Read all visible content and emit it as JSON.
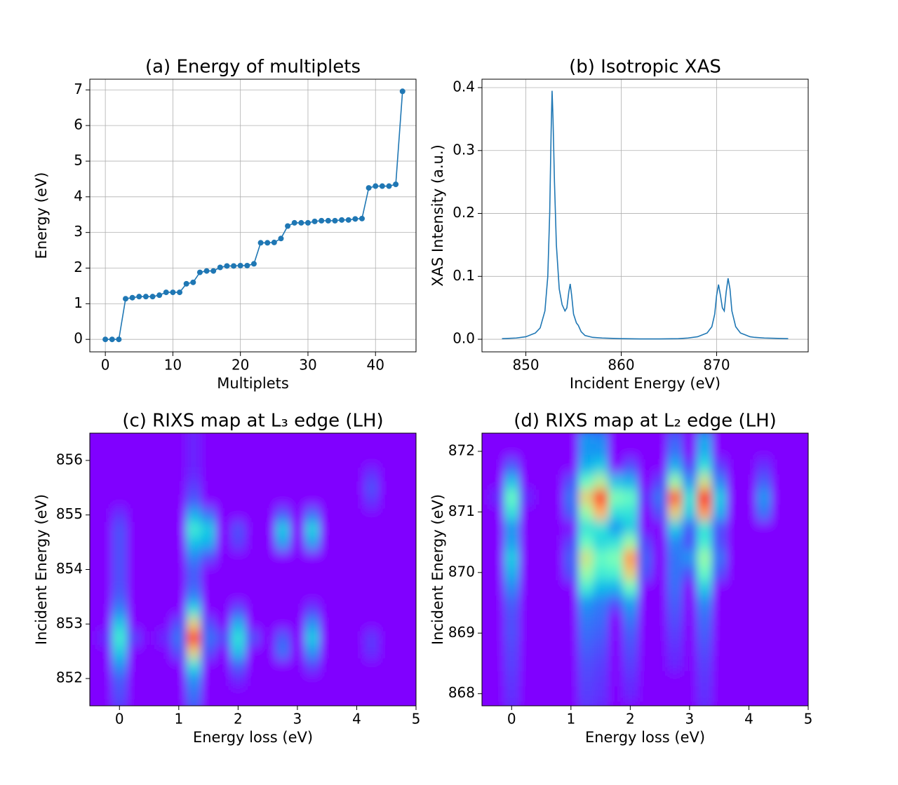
{
  "chart_data": [
    {
      "type": "line",
      "title": "(a) Energy of multiplets",
      "xlabel": "Multiplets",
      "ylabel": "Energy (eV)",
      "color": "#1f77b4",
      "marker": true,
      "grid": true,
      "x": [
        0,
        1,
        2,
        3,
        4,
        5,
        6,
        7,
        8,
        9,
        10,
        11,
        12,
        13,
        14,
        15,
        16,
        17,
        18,
        19,
        20,
        21,
        22,
        23,
        24,
        25,
        26,
        27,
        28,
        29,
        30,
        31,
        32,
        33,
        34,
        35,
        36,
        37,
        38,
        39,
        40,
        41,
        42,
        43,
        44
      ],
      "values": [
        0,
        0,
        0,
        1.14,
        1.17,
        1.2,
        1.2,
        1.2,
        1.24,
        1.32,
        1.32,
        1.32,
        1.56,
        1.6,
        1.88,
        1.92,
        1.92,
        2.02,
        2.06,
        2.06,
        2.07,
        2.07,
        2.12,
        2.71,
        2.71,
        2.72,
        2.83,
        3.18,
        3.27,
        3.27,
        3.27,
        3.31,
        3.33,
        3.33,
        3.33,
        3.35,
        3.35,
        3.38,
        3.39,
        4.25,
        4.3,
        4.3,
        4.3,
        4.35,
        6.96
      ],
      "xlim": [
        -2.3,
        46
      ],
      "ylim": [
        -0.35,
        7.3
      ],
      "xticks": [
        0,
        10,
        20,
        30,
        40
      ],
      "yticks": [
        0,
        1,
        2,
        3,
        4,
        5,
        6,
        7
      ]
    },
    {
      "type": "line",
      "title": "(b) Isotropic XAS",
      "xlabel": "Incident Energy (eV)",
      "ylabel": "XAS Intensity (a.u.)",
      "color": "#1f77b4",
      "marker": false,
      "grid": true,
      "x": [
        847.5,
        849,
        850,
        851,
        851.5,
        852,
        852.3,
        852.5,
        852.65,
        852.75,
        852.85,
        853,
        853.2,
        853.5,
        853.8,
        854.1,
        854.3,
        854.5,
        854.65,
        854.8,
        855,
        855.3,
        855.5,
        855.8,
        856.2,
        857,
        858,
        860,
        862,
        864,
        866,
        867,
        868,
        869,
        869.5,
        869.8,
        870,
        870.2,
        870.4,
        870.6,
        870.8,
        871,
        871.2,
        871.4,
        871.6,
        872,
        872.5,
        873,
        873.5,
        874,
        875,
        877.5
      ],
      "values": [
        0.001,
        0.002,
        0.004,
        0.01,
        0.018,
        0.045,
        0.1,
        0.2,
        0.33,
        0.395,
        0.35,
        0.25,
        0.15,
        0.08,
        0.055,
        0.045,
        0.05,
        0.075,
        0.088,
        0.07,
        0.04,
        0.026,
        0.022,
        0.012,
        0.006,
        0.003,
        0.002,
        0.001,
        0.0005,
        0.0005,
        0.001,
        0.002,
        0.004,
        0.01,
        0.02,
        0.04,
        0.07,
        0.087,
        0.07,
        0.05,
        0.045,
        0.075,
        0.097,
        0.08,
        0.045,
        0.02,
        0.01,
        0.007,
        0.004,
        0.003,
        0.002,
        0.001
      ],
      "xlim": [
        845.4,
        879.6
      ],
      "ylim": [
        -0.02,
        0.4134
      ],
      "xticks": [
        850,
        860,
        870
      ],
      "yticks": [
        {
          "value": 0,
          "label": "0.0"
        },
        0.1,
        0.2,
        0.3,
        0.4
      ]
    },
    {
      "type": "heatmap",
      "title": "(c) RIXS map at L₃ edge  (LH)",
      "xlabel": "Energy loss (eV)",
      "ylabel": "Incident Energy (eV)",
      "colormap": "rainbow",
      "grid": false,
      "x": [
        -0.5,
        -0.25,
        0,
        0.25,
        0.5,
        0.75,
        1,
        1.25,
        1.5,
        1.75,
        2,
        2.25,
        2.5,
        2.75,
        3,
        3.25,
        3.5,
        3.75,
        4,
        4.25,
        4.5,
        4.75,
        5
      ],
      "y": [
        851.5,
        851.75,
        852,
        852.25,
        852.5,
        852.75,
        853,
        853.25,
        853.5,
        853.75,
        854,
        854.25,
        854.5,
        854.75,
        855,
        855.25,
        855.5,
        855.75,
        856,
        856.25,
        856.5
      ],
      "values": [
        [
          0,
          0,
          0.08,
          0,
          0,
          0,
          0,
          0.12,
          0,
          0,
          0,
          0,
          0,
          0,
          0,
          0,
          0,
          0,
          0,
          0,
          0,
          0,
          0
        ],
        [
          0,
          0,
          0.1,
          0,
          0,
          0,
          0,
          0.15,
          0,
          0,
          0,
          0,
          0,
          0,
          0,
          0,
          0,
          0,
          0,
          0,
          0,
          0,
          0
        ],
        [
          0,
          0,
          0.12,
          0,
          0,
          0,
          0,
          0.2,
          0,
          0,
          0.05,
          0,
          0,
          0,
          0,
          0,
          0,
          0,
          0,
          0,
          0,
          0,
          0
        ],
        [
          0,
          0,
          0.2,
          0,
          0,
          0,
          0,
          0.35,
          0,
          0,
          0.12,
          0,
          0,
          0,
          0,
          0.08,
          0,
          0,
          0,
          0,
          0,
          0,
          0
        ],
        [
          0,
          0,
          0.3,
          0,
          0,
          0,
          0.1,
          0.7,
          0.1,
          0,
          0.28,
          0,
          0,
          0.15,
          0,
          0.2,
          0,
          0,
          0,
          0.06,
          0,
          0,
          0
        ],
        [
          0,
          0.05,
          0.38,
          0.08,
          0,
          0.05,
          0.15,
          1,
          0.15,
          0.1,
          0.35,
          0.1,
          0,
          0.12,
          0,
          0.3,
          0,
          0,
          0,
          0.07,
          0,
          0,
          0
        ],
        [
          0,
          0,
          0.3,
          0,
          0,
          0,
          0.1,
          0.7,
          0.1,
          0,
          0.25,
          0,
          0,
          0,
          0,
          0.2,
          0,
          0,
          0,
          0,
          0,
          0,
          0
        ],
        [
          0,
          0,
          0.18,
          0,
          0,
          0,
          0,
          0.35,
          0,
          0,
          0.1,
          0,
          0,
          0,
          0,
          0.08,
          0,
          0,
          0,
          0,
          0,
          0,
          0
        ],
        [
          0,
          0,
          0.12,
          0,
          0,
          0,
          0,
          0.18,
          0,
          0,
          0,
          0,
          0,
          0,
          0,
          0,
          0,
          0,
          0,
          0,
          0,
          0,
          0
        ],
        [
          0,
          0,
          0.1,
          0,
          0,
          0,
          0,
          0.12,
          0,
          0,
          0,
          0,
          0,
          0,
          0,
          0,
          0,
          0,
          0,
          0,
          0,
          0,
          0
        ],
        [
          0,
          0,
          0.1,
          0,
          0,
          0,
          0,
          0.12,
          0,
          0,
          0,
          0,
          0,
          0,
          0,
          0,
          0,
          0,
          0,
          0,
          0,
          0,
          0
        ],
        [
          0,
          0,
          0.1,
          0,
          0,
          0,
          0,
          0.18,
          0.1,
          0,
          0,
          0,
          0,
          0,
          0,
          0,
          0,
          0,
          0,
          0,
          0,
          0,
          0
        ],
        [
          0,
          0,
          0.1,
          0,
          0,
          0,
          0,
          0.28,
          0.25,
          0,
          0.08,
          0,
          0,
          0.22,
          0,
          0.22,
          0,
          0,
          0,
          0,
          0,
          0,
          0
        ],
        [
          0,
          0,
          0.1,
          0,
          0,
          0,
          0,
          0.38,
          0.3,
          0,
          0.1,
          0,
          0,
          0.3,
          0,
          0.32,
          0,
          0,
          0,
          0,
          0,
          0,
          0
        ],
        [
          0,
          0,
          0.06,
          0,
          0,
          0,
          0,
          0.25,
          0.15,
          0,
          0,
          0,
          0,
          0.12,
          0,
          0.15,
          0,
          0,
          0,
          0,
          0,
          0,
          0
        ],
        [
          0,
          0,
          0,
          0,
          0,
          0,
          0,
          0.12,
          0,
          0,
          0,
          0,
          0,
          0,
          0,
          0,
          0,
          0,
          0,
          0.06,
          0,
          0,
          0
        ],
        [
          0,
          0,
          0,
          0,
          0,
          0,
          0,
          0.08,
          0,
          0,
          0,
          0,
          0,
          0,
          0,
          0,
          0,
          0,
          0,
          0.1,
          0,
          0,
          0
        ],
        [
          0,
          0,
          0,
          0,
          0,
          0,
          0,
          0.05,
          0,
          0,
          0,
          0,
          0,
          0,
          0,
          0,
          0,
          0,
          0,
          0.06,
          0,
          0,
          0
        ],
        [
          0,
          0,
          0,
          0,
          0,
          0,
          0,
          0.04,
          0,
          0,
          0,
          0,
          0,
          0,
          0,
          0,
          0,
          0,
          0,
          0,
          0,
          0,
          0
        ],
        [
          0,
          0,
          0,
          0,
          0,
          0,
          0,
          0.04,
          0,
          0,
          0,
          0,
          0,
          0,
          0,
          0,
          0,
          0,
          0,
          0,
          0,
          0,
          0
        ],
        [
          0,
          0,
          0,
          0,
          0,
          0,
          0,
          0.04,
          0,
          0,
          0,
          0,
          0,
          0,
          0,
          0,
          0,
          0,
          0,
          0,
          0,
          0,
          0
        ]
      ],
      "xlim": [
        -0.5,
        5
      ],
      "ylim": [
        851.5,
        856.5
      ],
      "xticks": [
        0,
        1,
        2,
        3,
        4,
        5
      ],
      "yticks": [
        852,
        853,
        854,
        855,
        856
      ]
    },
    {
      "type": "heatmap",
      "title": "(d) RIXS map at L₂ edge  (LH)",
      "xlabel": "Energy loss (eV)",
      "ylabel": "Incident Energy (eV)",
      "colormap": "rainbow",
      "grid": false,
      "x": [
        -0.5,
        -0.25,
        0,
        0.25,
        0.5,
        0.75,
        1,
        1.25,
        1.5,
        1.75,
        2,
        2.25,
        2.5,
        2.75,
        3,
        3.25,
        3.5,
        3.75,
        4,
        4.25,
        4.5,
        4.75,
        5
      ],
      "y": [
        867.75,
        868,
        868.25,
        868.5,
        868.75,
        869,
        869.25,
        869.5,
        869.75,
        870,
        870.25,
        870.5,
        870.75,
        871,
        871.25,
        871.5,
        871.75,
        872,
        872.25
      ],
      "values": [
        [
          0,
          0,
          0.05,
          0,
          0,
          0,
          0,
          0.06,
          0.05,
          0,
          0,
          0,
          0,
          0,
          0,
          0.05,
          0,
          0,
          0,
          0,
          0,
          0,
          0
        ],
        [
          0,
          0,
          0.06,
          0,
          0,
          0,
          0,
          0.08,
          0.06,
          0,
          0.05,
          0,
          0,
          0,
          0,
          0.06,
          0,
          0,
          0,
          0,
          0,
          0,
          0
        ],
        [
          0,
          0,
          0.07,
          0,
          0,
          0,
          0,
          0.09,
          0.07,
          0,
          0.06,
          0,
          0,
          0,
          0,
          0.07,
          0,
          0,
          0,
          0,
          0,
          0,
          0
        ],
        [
          0,
          0,
          0.08,
          0,
          0,
          0,
          0,
          0.1,
          0.08,
          0,
          0.08,
          0,
          0,
          0.05,
          0,
          0.08,
          0,
          0,
          0,
          0,
          0,
          0,
          0
        ],
        [
          0,
          0,
          0.09,
          0,
          0,
          0,
          0,
          0.12,
          0.1,
          0,
          0.1,
          0,
          0,
          0.06,
          0,
          0.1,
          0,
          0,
          0,
          0,
          0,
          0,
          0
        ],
        [
          0,
          0,
          0.1,
          0,
          0,
          0,
          0,
          0.14,
          0.12,
          0,
          0.12,
          0,
          0,
          0.08,
          0,
          0.12,
          0,
          0,
          0,
          0,
          0,
          0,
          0
        ],
        [
          0,
          0,
          0.1,
          0,
          0,
          0,
          0,
          0.16,
          0.14,
          0,
          0.16,
          0,
          0,
          0.1,
          0,
          0.14,
          0,
          0,
          0,
          0,
          0,
          0,
          0
        ],
        [
          0,
          0,
          0.12,
          0,
          0,
          0,
          0,
          0.2,
          0.16,
          0.1,
          0.22,
          0,
          0,
          0.12,
          0,
          0.18,
          0,
          0,
          0,
          0,
          0,
          0,
          0
        ],
        [
          0,
          0,
          0.18,
          0,
          0,
          0,
          0,
          0.38,
          0.26,
          0.25,
          0.45,
          0,
          0,
          0.14,
          0,
          0.3,
          0,
          0,
          0,
          0,
          0,
          0,
          0
        ],
        [
          0,
          0,
          0.25,
          0,
          0,
          0,
          0.1,
          0.55,
          0.38,
          0.4,
          0.7,
          0.1,
          0,
          0.15,
          0.1,
          0.45,
          0.1,
          0,
          0,
          0,
          0,
          0,
          0
        ],
        [
          0,
          0,
          0.3,
          0,
          0,
          0,
          0.12,
          0.65,
          0.45,
          0.5,
          0.8,
          0.12,
          0,
          0.15,
          0.2,
          0.55,
          0.15,
          0,
          0,
          0,
          0,
          0,
          0
        ],
        [
          0,
          0,
          0.22,
          0,
          0,
          0,
          0.08,
          0.45,
          0.32,
          0.35,
          0.55,
          0.08,
          0,
          0.18,
          0.1,
          0.38,
          0.1,
          0,
          0,
          0,
          0,
          0,
          0
        ],
        [
          0,
          0,
          0.2,
          0,
          0,
          0,
          0,
          0.35,
          0.35,
          0.2,
          0.3,
          0,
          0,
          0.3,
          0.12,
          0.35,
          0.1,
          0,
          0,
          0,
          0,
          0,
          0
        ],
        [
          0,
          0,
          0.35,
          0,
          0,
          0,
          0.12,
          0.55,
          0.75,
          0.35,
          0.35,
          0,
          0.1,
          0.7,
          0.3,
          0.8,
          0.25,
          0,
          0,
          0.15,
          0,
          0,
          0
        ],
        [
          0,
          0.05,
          0.45,
          0.05,
          0,
          0,
          0.15,
          0.7,
          0.95,
          0.5,
          0.45,
          0.05,
          0.15,
          0.9,
          0.35,
          1,
          0.3,
          0,
          0,
          0.2,
          0,
          0,
          0
        ],
        [
          0,
          0,
          0.28,
          0,
          0,
          0,
          0.1,
          0.45,
          0.6,
          0.28,
          0.25,
          0,
          0.08,
          0.55,
          0.2,
          0.65,
          0.18,
          0,
          0,
          0.12,
          0,
          0,
          0
        ],
        [
          0,
          0,
          0.12,
          0,
          0,
          0,
          0,
          0.25,
          0.3,
          0,
          0.1,
          0,
          0,
          0.25,
          0.08,
          0.35,
          0.08,
          0,
          0,
          0.06,
          0,
          0,
          0
        ],
        [
          0,
          0,
          0,
          0,
          0,
          0,
          0,
          0.2,
          0.2,
          0,
          0,
          0,
          0,
          0.15,
          0,
          0.25,
          0,
          0,
          0,
          0,
          0,
          0,
          0
        ],
        [
          0,
          0,
          0,
          0,
          0,
          0,
          0,
          0.2,
          0.18,
          0,
          0,
          0,
          0,
          0.12,
          0,
          0.22,
          0,
          0,
          0,
          0,
          0,
          0,
          0
        ]
      ],
      "xlim": [
        -0.5,
        5
      ],
      "ylim": [
        867.8,
        872.3
      ],
      "xticks": [
        0,
        1,
        2,
        3,
        4,
        5
      ],
      "yticks": [
        868,
        869,
        870,
        871,
        872
      ]
    }
  ]
}
